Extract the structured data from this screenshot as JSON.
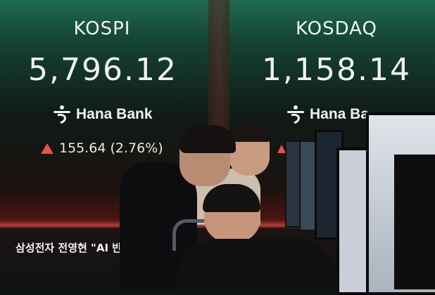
{
  "kospi": {
    "title": "KOSPI",
    "value": "5,796.12",
    "sponsor": "Hana Bank",
    "change": "155.64 (2.76%)",
    "direction": "up"
  },
  "kosdaq": {
    "title": "KOSDAQ",
    "value": "1,158.14",
    "sponsor": "Hana Ba"
  },
  "ticker": {
    "headline": "삼성전자 전영현 \"AI 반"
  },
  "colors": {
    "up": "#e9524a",
    "text": "#f0f2f0",
    "top_band": "#1f6a52",
    "bottom_band": "#c23a33"
  },
  "icons": {
    "logo": "hana-bank-logo-icon",
    "change_arrow": "triangle-up-icon"
  }
}
